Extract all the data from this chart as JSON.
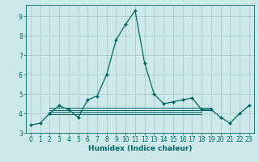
{
  "title": "",
  "xlabel": "Humidex (Indice chaleur)",
  "ylabel": "",
  "bg_color": "#cce8e8",
  "grid_color": "#aacccc",
  "line_color": "#006666",
  "xlim": [
    -0.5,
    23.5
  ],
  "ylim": [
    3.0,
    9.6
  ],
  "yticks": [
    3,
    4,
    5,
    6,
    7,
    8,
    9
  ],
  "xticks": [
    0,
    1,
    2,
    3,
    4,
    5,
    6,
    7,
    8,
    9,
    10,
    11,
    12,
    13,
    14,
    15,
    16,
    17,
    18,
    19,
    20,
    21,
    22,
    23
  ],
  "main_series": [
    3.4,
    3.5,
    4.0,
    4.4,
    4.2,
    3.8,
    4.7,
    4.9,
    6.0,
    7.8,
    8.6,
    9.3,
    6.6,
    5.0,
    4.5,
    4.6,
    4.7,
    4.8,
    4.2,
    4.2,
    3.8,
    3.5,
    4.0,
    4.4
  ],
  "flat_lines": [
    {
      "start": 2,
      "end": 19,
      "value": 4.18
    },
    {
      "start": 2,
      "end": 18,
      "value": 4.08
    },
    {
      "start": 2,
      "end": 18,
      "value": 3.98
    },
    {
      "start": 2,
      "end": 19,
      "value": 4.28
    }
  ],
  "tick_fontsize": 5.5,
  "xlabel_fontsize": 6.5
}
